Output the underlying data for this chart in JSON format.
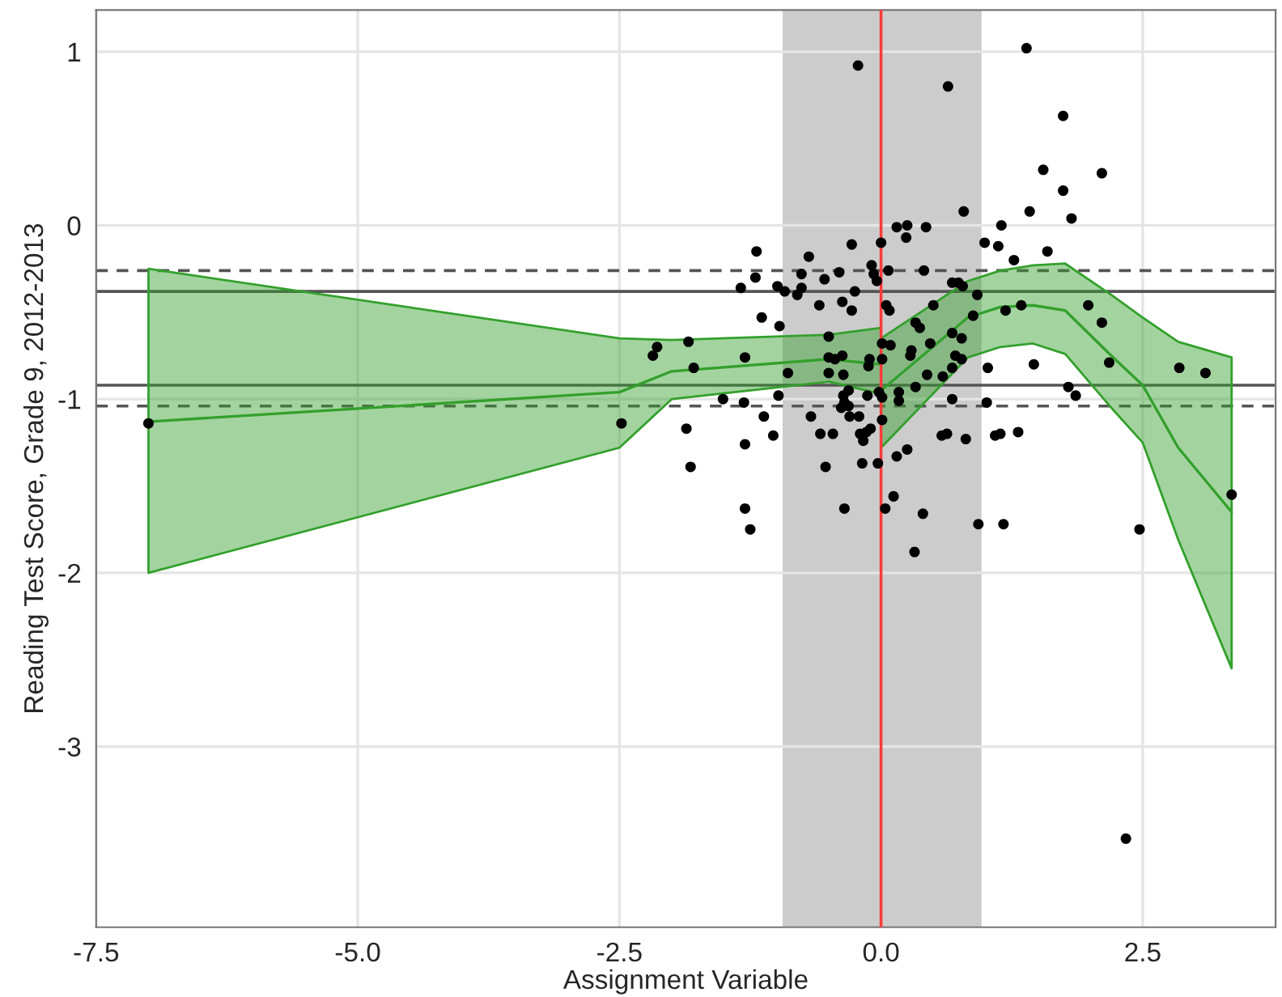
{
  "chart_data": {
    "type": "scatter",
    "xlabel": "Assignment Variable",
    "ylabel": "Reading Test Score, Grade 9, 2012-2013",
    "xlim": [
      -7.5,
      3.77
    ],
    "ylim": [
      -4.04,
      1.24
    ],
    "xticks": [
      {
        "value": -7.5,
        "label": "-7.5"
      },
      {
        "value": -5,
        "label": "-5.0"
      },
      {
        "value": -2.5,
        "label": "-2.5"
      },
      {
        "value": 0,
        "label": "0.0"
      },
      {
        "value": 2.5,
        "label": "2.5"
      }
    ],
    "yticks": [
      -3,
      -2,
      -1,
      0,
      1
    ],
    "grid": true,
    "legend": false,
    "bands": [
      {
        "axis": "x",
        "from": -0.94,
        "to": 0.96,
        "color": "#cccccc"
      }
    ],
    "ref_lines": [
      {
        "axis": "x",
        "value": 0,
        "color": "#ff3b3b",
        "line_style": "solid"
      },
      {
        "axis": "y",
        "value": -0.38,
        "color": "#555555",
        "line_style": "solid"
      },
      {
        "axis": "y",
        "value": -0.92,
        "color": "#555555",
        "line_style": "solid"
      },
      {
        "axis": "y",
        "value": -0.26,
        "color": "#555555",
        "line_style": "dashed"
      },
      {
        "axis": "y",
        "value": -1.04,
        "color": "#555555",
        "line_style": "dashed"
      }
    ],
    "series": [
      {
        "type": "line",
        "color": "#33a02c",
        "x": [
          -7,
          -2.5,
          -2.0,
          -0.5,
          0
        ],
        "values": [
          -1.13,
          -0.96,
          -0.84,
          -0.77,
          -0.8
        ],
        "upper": [
          -0.25,
          -0.65,
          -0.66,
          -0.63,
          -0.59
        ],
        "lower": [
          -2.0,
          -1.28,
          -1.0,
          -0.9,
          -0.97
        ]
      },
      {
        "type": "line",
        "color": "#33a02c",
        "x": [
          0,
          0.83,
          1.14,
          1.45,
          1.76,
          2.2,
          2.5,
          2.84,
          3.35
        ],
        "values": [
          -0.95,
          -0.53,
          -0.47,
          -0.46,
          -0.49,
          -0.75,
          -0.92,
          -1.28,
          -1.65
        ],
        "upper": [
          -0.65,
          -0.32,
          -0.26,
          -0.23,
          -0.22,
          -0.4,
          -0.53,
          -0.67,
          -0.76
        ],
        "lower": [
          -1.28,
          -0.76,
          -0.7,
          -0.68,
          -0.74,
          -1.05,
          -1.25,
          -1.81,
          -2.55
        ]
      },
      {
        "color": "#000000",
        "x": [
          -0.22,
          0.64,
          1.39,
          0.79,
          1.42,
          0.15,
          0.25,
          0.24,
          0.43,
          1.15,
          -1.19,
          -0.28,
          0.0,
          -0.69,
          0.99,
          1.12,
          1.27,
          -0.09,
          -0.07,
          -0.04,
          0.07,
          0.41,
          -0.4,
          -0.76,
          -1.2,
          -0.54,
          -1.34,
          -0.99,
          -0.76,
          -0.92,
          -0.8,
          -0.25,
          0.68,
          0.74,
          0.78,
          0.92,
          -0.59,
          -0.37,
          -0.28,
          0.05,
          0.08,
          -1.14,
          -0.97,
          0.33,
          0.37,
          0.5,
          1.19,
          1.34,
          0.88,
          0.68,
          -0.5,
          0.47,
          0.77,
          0.01,
          0.09,
          0.29,
          0.28,
          -1.3,
          -0.5,
          -0.44,
          -0.37,
          -0.11,
          -0.12,
          0.01,
          0.71,
          0.77,
          -0.89,
          -0.5,
          -0.36,
          0.44,
          0.59,
          0.68,
          1.02,
          -1.51,
          -1.31,
          -0.98,
          -0.31,
          -0.36,
          -0.35,
          -0.38,
          -0.31,
          -0.13,
          -0.02,
          0.01,
          0.17,
          0.17,
          0.33,
          0.68,
          1.01,
          -1.12,
          -0.67,
          -0.3,
          -0.21,
          -0.1,
          -0.14,
          -0.2,
          -0.17,
          0.01,
          -1.03,
          -0.58,
          -0.46,
          0.58,
          0.63,
          0.81,
          1.09,
          1.14,
          1.31,
          -1.3,
          0.25,
          0.15,
          -0.18,
          -0.53,
          -0.03,
          0.12,
          -1.3,
          -1.25,
          -0.35,
          0.04,
          0.4,
          0.93,
          1.17,
          0.32,
          1.74,
          1.55,
          2.11,
          1.74,
          1.82,
          1.59,
          1.98,
          2.11,
          1.46,
          2.18,
          1.79,
          1.86,
          2.85,
          3.1,
          3.35,
          2.47,
          2.34,
          -7.0,
          -2.14,
          -2.18,
          -1.84,
          -1.79,
          -2.48,
          -1.86,
          -1.82
        ],
        "values": [
          0.92,
          0.8,
          1.02,
          0.08,
          0.08,
          -0.01,
          0.0,
          -0.07,
          -0.01,
          0.0,
          -0.15,
          -0.11,
          -0.1,
          -0.18,
          -0.1,
          -0.12,
          -0.2,
          -0.23,
          -0.28,
          -0.32,
          -0.26,
          -0.26,
          -0.27,
          -0.28,
          -0.3,
          -0.31,
          -0.36,
          -0.35,
          -0.36,
          -0.38,
          -0.4,
          -0.38,
          -0.33,
          -0.33,
          -0.35,
          -0.4,
          -0.46,
          -0.44,
          -0.49,
          -0.46,
          -0.49,
          -0.53,
          -0.58,
          -0.56,
          -0.59,
          -0.46,
          -0.49,
          -0.46,
          -0.52,
          -0.62,
          -0.64,
          -0.68,
          -0.65,
          -0.68,
          -0.69,
          -0.72,
          -0.75,
          -0.76,
          -0.76,
          -0.77,
          -0.75,
          -0.77,
          -0.81,
          -0.77,
          -0.75,
          -0.77,
          -0.85,
          -0.85,
          -0.86,
          -0.86,
          -0.87,
          -0.82,
          -0.82,
          -1.0,
          -1.02,
          -0.98,
          -0.95,
          -0.98,
          -1.02,
          -1.05,
          -1.04,
          -0.98,
          -0.96,
          -0.99,
          -0.96,
          -1.01,
          -0.93,
          -1.0,
          -1.02,
          -1.1,
          -1.1,
          -1.1,
          -1.1,
          -1.17,
          -1.19,
          -1.2,
          -1.24,
          -1.12,
          -1.21,
          -1.2,
          -1.2,
          -1.21,
          -1.2,
          -1.23,
          -1.21,
          -1.2,
          -1.19,
          -1.26,
          -1.29,
          -1.33,
          -1.37,
          -1.39,
          -1.37,
          -1.56,
          -1.63,
          -1.75,
          -1.63,
          -1.63,
          -1.66,
          -1.72,
          -1.72,
          -1.88,
          0.63,
          0.32,
          0.3,
          0.2,
          0.04,
          -0.15,
          -0.46,
          -0.56,
          -0.8,
          -0.79,
          -0.93,
          -0.98,
          -0.82,
          -0.85,
          -1.55,
          -1.75,
          -3.53,
          -1.14,
          -0.7,
          -0.75,
          -0.67,
          -0.82,
          -1.14,
          -1.17,
          -1.39
        ]
      }
    ]
  }
}
